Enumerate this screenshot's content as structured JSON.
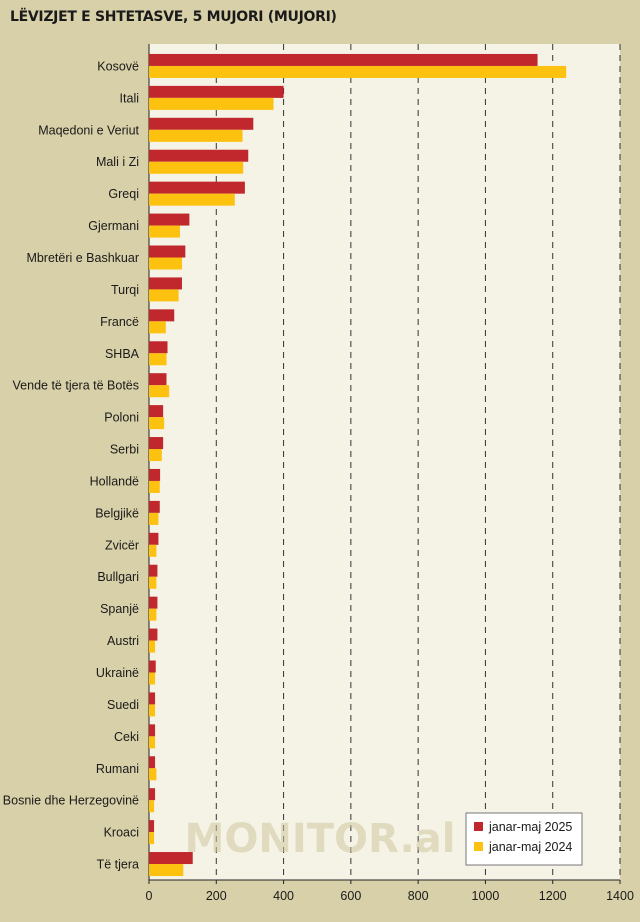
{
  "title": "LËVIZJET E SHTETASVE, 5 MUJORI (MUJORI)",
  "watermark": "MONITOR.al",
  "colors": {
    "series_2025": "#c0282d",
    "series_2024": "#fdc10f",
    "plot_bg": "#f5f2e6",
    "page_bg": "#d8d0a8"
  },
  "chart_data": {
    "type": "bar",
    "orientation": "horizontal",
    "title": "LËVIZJET E SHTETASVE, 5 MUJORI (MUJORI)",
    "xlabel": "",
    "ylabel": "",
    "xlim": [
      0,
      1400
    ],
    "xticks": [
      0,
      200,
      400,
      600,
      800,
      1000,
      1200,
      1400
    ],
    "grid": "vertical dashed",
    "legend_position": "bottom-right",
    "categories": [
      "Kosovë",
      "Itali",
      "Maqedoni e Veriut",
      "Mali i Zi",
      "Greqi",
      "Gjermani",
      "Mbretëri e Bashkuar",
      "Turqi",
      "Francë",
      "SHBA",
      "Vende të tjera të Botës",
      "Poloni",
      "Serbi",
      "Hollandë",
      "Belgjikë",
      "Zvicër",
      "Bullgari",
      "Spanjë",
      "Austri",
      "Ukrainë",
      "Suedi",
      "Ceki",
      "Rumani",
      "Bosnie dhe Herzegovinë",
      "Kroaci",
      "Të tjera"
    ],
    "series": [
      {
        "name": "janar-maj 2025",
        "color": "#c0282d",
        "values": [
          1155,
          400,
          310,
          295,
          285,
          120,
          108,
          98,
          75,
          55,
          52,
          42,
          42,
          33,
          32,
          28,
          25,
          25,
          25,
          20,
          18,
          18,
          18,
          18,
          15,
          130
        ]
      },
      {
        "name": "janar-maj 2024",
        "color": "#fdc10f",
        "values": [
          1240,
          370,
          278,
          280,
          255,
          92,
          98,
          88,
          50,
          52,
          60,
          45,
          38,
          32,
          28,
          22,
          22,
          22,
          18,
          18,
          18,
          18,
          22,
          15,
          15,
          102
        ]
      }
    ]
  }
}
